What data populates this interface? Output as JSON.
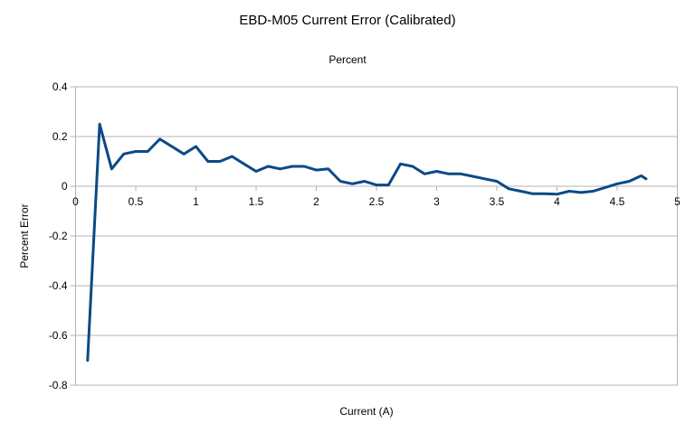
{
  "chart_data": {
    "type": "line",
    "title": "EBD-M05 Current Error (Calibrated)",
    "subtitle": "Percent",
    "xlabel": "Current (A)",
    "ylabel": "Percent Error",
    "xlim": [
      0,
      5
    ],
    "ylim": [
      -0.8,
      0.4
    ],
    "x_ticks": [
      0,
      0.5,
      1,
      1.5,
      2,
      2.5,
      3,
      3.5,
      4,
      4.5,
      5
    ],
    "x_tick_labels": [
      "0",
      "0.5",
      "1",
      "1.5",
      "2",
      "2.5",
      "3",
      "3.5",
      "4",
      "4.5",
      "5"
    ],
    "y_ticks": [
      0.4,
      0.2,
      0,
      -0.2,
      -0.4,
      -0.6,
      -0.8
    ],
    "y_tick_labels": [
      "0.4",
      "0.2",
      "0",
      "-0.2",
      "-0.4",
      "-0.6",
      "-0.8"
    ],
    "grid": "horizontal",
    "legend": "none",
    "axis_crosses_at": 0,
    "colors": {
      "line": "#0a4a86",
      "grid": "#b3b3b3",
      "axis": "#b3b3b3",
      "text": "#000000",
      "background": "#ffffff"
    },
    "series": [
      {
        "name": "Percent Error",
        "color": "#0a4a86",
        "x": [
          0.1,
          0.2,
          0.3,
          0.4,
          0.5,
          0.6,
          0.7,
          0.8,
          0.9,
          1.0,
          1.1,
          1.2,
          1.3,
          1.4,
          1.5,
          1.6,
          1.7,
          1.8,
          1.9,
          2.0,
          2.1,
          2.2,
          2.3,
          2.4,
          2.5,
          2.6,
          2.7,
          2.8,
          2.9,
          3.0,
          3.1,
          3.2,
          3.3,
          3.4,
          3.5,
          3.6,
          3.7,
          3.8,
          3.9,
          4.0,
          4.1,
          4.2,
          4.3,
          4.4,
          4.5,
          4.6,
          4.7,
          4.74
        ],
        "y": [
          -0.7,
          0.25,
          0.07,
          0.13,
          0.14,
          0.14,
          0.19,
          0.16,
          0.13,
          0.16,
          0.1,
          0.1,
          0.12,
          0.09,
          0.06,
          0.08,
          0.07,
          0.08,
          0.08,
          0.065,
          0.07,
          0.02,
          0.01,
          0.02,
          0.005,
          0.005,
          0.09,
          0.08,
          0.05,
          0.06,
          0.05,
          0.05,
          0.04,
          0.03,
          0.02,
          -0.01,
          -0.02,
          -0.03,
          -0.03,
          -0.032,
          -0.02,
          -0.025,
          -0.02,
          -0.005,
          0.01,
          0.02,
          0.042,
          0.03
        ]
      }
    ]
  }
}
